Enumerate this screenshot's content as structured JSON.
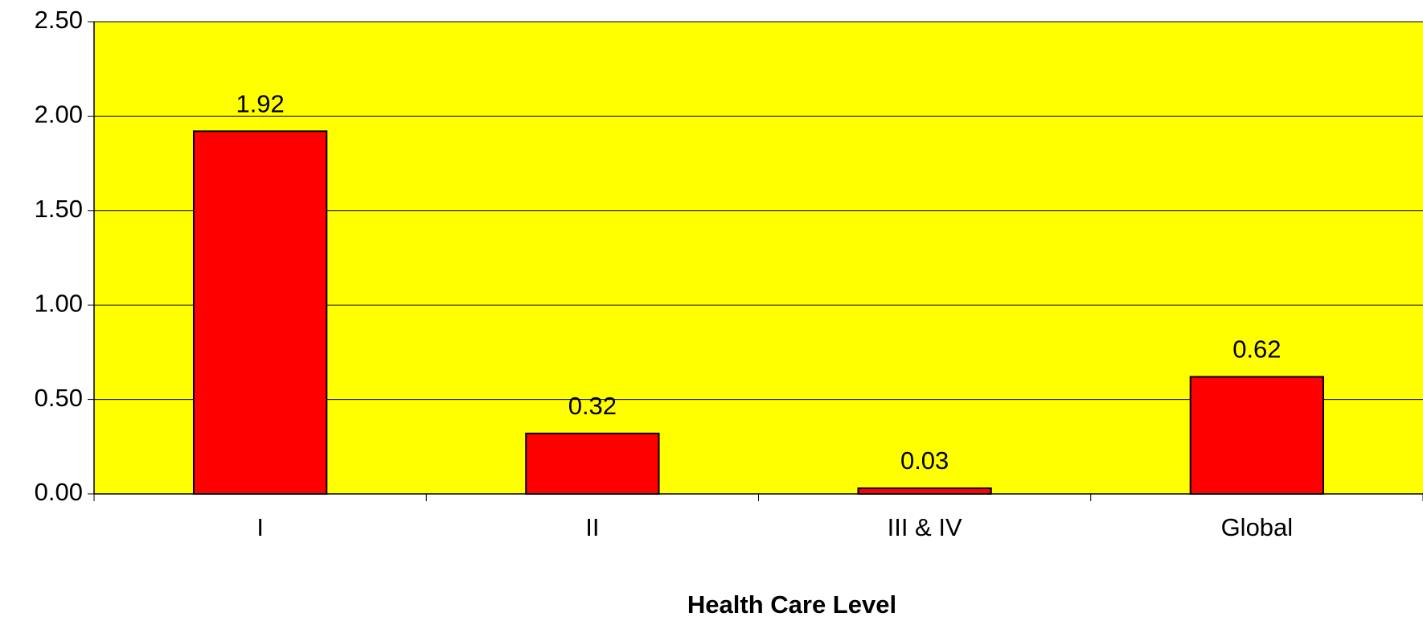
{
  "chart_data": {
    "type": "bar",
    "x_label": "Health Care Level",
    "categories": [
      "I",
      "II",
      "III & IV",
      "Global"
    ],
    "values": [
      1.92,
      0.32,
      0.03,
      0.62
    ],
    "color": "#ff0000",
    "plot_background": "#ffff00",
    "ylim": [
      0,
      2.5
    ],
    "yticks": [
      {
        "value": 0,
        "label": "0.00"
      },
      {
        "value": 0.5,
        "label": "0.50"
      },
      {
        "value": 1,
        "label": "1.00"
      },
      {
        "value": 1.5,
        "label": "1.50"
      },
      {
        "value": 2,
        "label": "2.00"
      },
      {
        "value": 2.5,
        "label": "2.50"
      }
    ],
    "grid": true
  }
}
